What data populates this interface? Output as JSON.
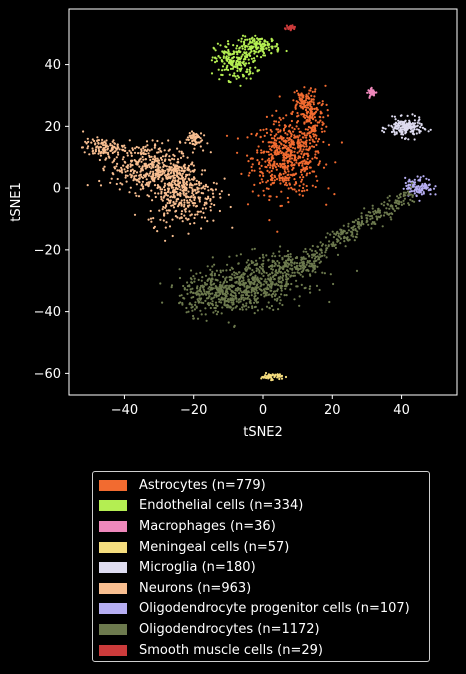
{
  "chart_data": {
    "type": "scatter",
    "title": "",
    "xlabel": "tSNE2",
    "ylabel": "tSNE1",
    "xlim": [
      -56,
      56
    ],
    "ylim": [
      -67,
      58
    ],
    "xticks": [
      -40,
      -20,
      0,
      20,
      40
    ],
    "yticks": [
      -60,
      -40,
      -20,
      0,
      20,
      40
    ],
    "xtick_labels": [
      "−40",
      "−20",
      "0",
      "20",
      "40"
    ],
    "ytick_labels": [
      "−60",
      "−40",
      "−20",
      "0",
      "20",
      "40"
    ],
    "grid": false,
    "legend_position": "below",
    "series": [
      {
        "name": "Astrocytes (n=779)",
        "color": "#f26b30",
        "count": 779,
        "clusters": [
          [
            7,
            10,
            5,
            6,
            1
          ],
          [
            14,
            23,
            2,
            5,
            0.3
          ],
          [
            11,
            28,
            1.5,
            2,
            0.1
          ]
        ]
      },
      {
        "name": "Endothelial cells (n=334)",
        "color": "#b4ee52",
        "count": 334,
        "clusters": [
          [
            -8,
            41,
            3,
            3,
            0.6
          ],
          [
            -1,
            46,
            3,
            1.5,
            0.4
          ]
        ]
      },
      {
        "name": "Macrophages (n=36)",
        "color": "#ee88bb",
        "count": 36,
        "clusters": [
          [
            31.5,
            31,
            0.6,
            0.6,
            1
          ]
        ]
      },
      {
        "name": "Meningeal cells (n=57)",
        "color": "#f5dd7e",
        "count": 57,
        "clusters": [
          [
            2.5,
            -61,
            1.5,
            0.5,
            1
          ]
        ]
      },
      {
        "name": "Microglia (n=180)",
        "color": "#dedcf0",
        "count": 180,
        "clusters": [
          [
            41,
            19.5,
            2.5,
            1.5,
            1
          ]
        ]
      },
      {
        "name": "Neurons (n=963)",
        "color": "#f8be90",
        "count": 963,
        "clusters": [
          [
            -34,
            7,
            5,
            4,
            0.35
          ],
          [
            -23,
            -2,
            5,
            5,
            0.35
          ],
          [
            -46,
            13,
            3,
            1.5,
            0.12
          ],
          [
            -20,
            16,
            1.2,
            1.5,
            0.06
          ],
          [
            -25,
            4,
            3,
            3,
            0.12
          ]
        ]
      },
      {
        "name": "Oligodendrocyte progenitor cells (n=107)",
        "color": "#b6aef2",
        "count": 107,
        "clusters": [
          [
            45,
            0.5,
            2,
            1.5,
            1
          ]
        ]
      },
      {
        "name": "Oligodendrocytes (n=1172)",
        "color": "#6d7a4e",
        "count": 1172,
        "clusters": [
          [
            -12,
            -34,
            6,
            3.5,
            0.35
          ],
          [
            0,
            -30,
            6,
            4,
            0.3
          ],
          [
            10,
            -25,
            4,
            2,
            0.12
          ]
        ]
      },
      {
        "name": "Smooth muscle cells (n=29)",
        "color": "#cc3b3b",
        "count": 29,
        "clusters": [
          [
            8,
            52,
            0.7,
            0.4,
            1
          ]
        ]
      }
    ],
    "trail": {
      "series": 7,
      "from": [
        12,
        -23
      ],
      "to": [
        43,
        -2
      ],
      "width": 1.6
    }
  }
}
